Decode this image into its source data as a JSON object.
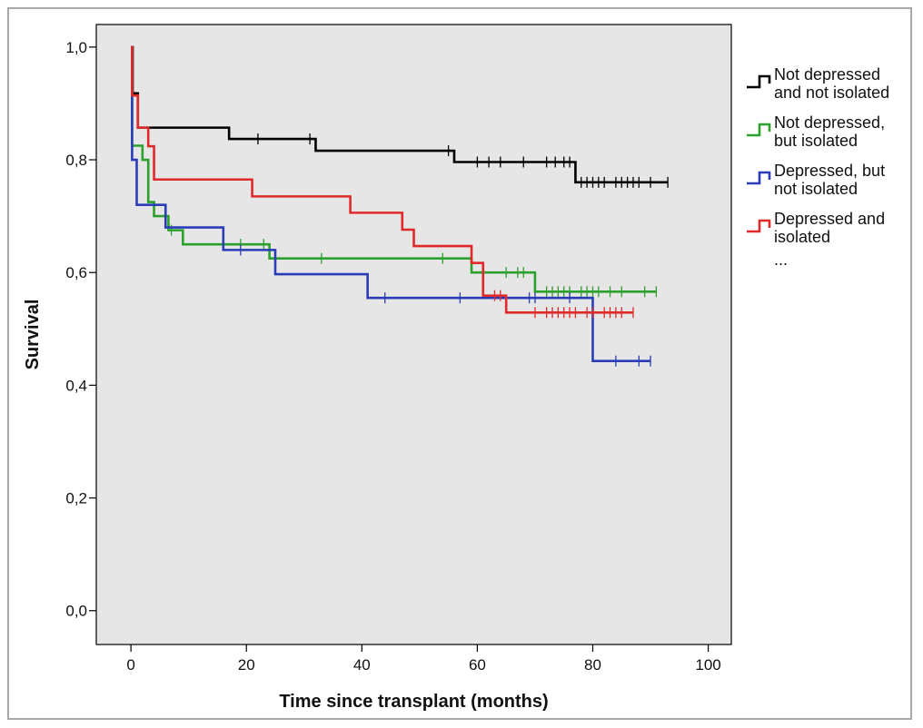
{
  "chart_data": {
    "type": "line",
    "subtype": "kaplan-meier",
    "xlabel": "Time since transplant (months)",
    "ylabel": "Survival",
    "xlim": [
      -6,
      104
    ],
    "ylim": [
      -0.06,
      1.04
    ],
    "xticks": [
      0,
      20,
      40,
      60,
      80,
      100
    ],
    "yticks": [
      0.0,
      0.2,
      0.4,
      0.6,
      0.8,
      1.0
    ],
    "xtick_labels": [
      "0",
      "20",
      "40",
      "60",
      "80",
      "100"
    ],
    "ytick_labels": [
      "0,0",
      "0,2",
      "0,4",
      "0,6",
      "0,8",
      "1,0"
    ],
    "plot_background": "#e6e6e6",
    "grid": false,
    "legend_position": "right",
    "legend_ellipsis": "...",
    "series": [
      {
        "name_lines": [
          "Not depressed",
          "and not isolated"
        ],
        "color": "#000000",
        "steps": [
          [
            0,
            1.0
          ],
          [
            0.3,
            0.918
          ],
          [
            1.2,
            0.857
          ],
          [
            17,
            0.837
          ],
          [
            32,
            0.816
          ],
          [
            56,
            0.796
          ],
          [
            77,
            0.76
          ],
          [
            93,
            0.76
          ]
        ],
        "censored": [
          [
            22,
            0.837
          ],
          [
            31,
            0.837
          ],
          [
            55,
            0.816
          ],
          [
            60,
            0.796
          ],
          [
            62,
            0.796
          ],
          [
            64,
            0.796
          ],
          [
            68,
            0.796
          ],
          [
            72,
            0.796
          ],
          [
            73.5,
            0.796
          ],
          [
            75,
            0.796
          ],
          [
            76,
            0.796
          ],
          [
            78,
            0.76
          ],
          [
            79,
            0.76
          ],
          [
            80,
            0.76
          ],
          [
            81,
            0.76
          ],
          [
            82,
            0.76
          ],
          [
            84,
            0.76
          ],
          [
            85,
            0.76
          ],
          [
            86,
            0.76
          ],
          [
            87,
            0.76
          ],
          [
            88,
            0.76
          ],
          [
            90,
            0.76
          ],
          [
            93,
            0.76
          ]
        ]
      },
      {
        "name_lines": [
          "Not depressed,",
          "but isolated"
        ],
        "color": "#2ca02c",
        "steps": [
          [
            0,
            1.0
          ],
          [
            0.2,
            0.825
          ],
          [
            2,
            0.8
          ],
          [
            3,
            0.725
          ],
          [
            4,
            0.7
          ],
          [
            6.5,
            0.675
          ],
          [
            9,
            0.65
          ],
          [
            24,
            0.625
          ],
          [
            59,
            0.6
          ],
          [
            70,
            0.566
          ],
          [
            91,
            0.566
          ]
        ],
        "censored": [
          [
            7,
            0.675
          ],
          [
            19,
            0.65
          ],
          [
            23,
            0.65
          ],
          [
            33,
            0.625
          ],
          [
            54,
            0.625
          ],
          [
            65,
            0.6
          ],
          [
            67,
            0.6
          ],
          [
            68,
            0.6
          ],
          [
            72,
            0.566
          ],
          [
            73,
            0.566
          ],
          [
            74,
            0.566
          ],
          [
            75,
            0.566
          ],
          [
            76,
            0.566
          ],
          [
            78,
            0.566
          ],
          [
            79,
            0.566
          ],
          [
            80,
            0.566
          ],
          [
            81,
            0.566
          ],
          [
            83,
            0.566
          ],
          [
            85,
            0.566
          ],
          [
            89,
            0.566
          ],
          [
            91,
            0.566
          ]
        ]
      },
      {
        "name_lines": [
          "Depressed, but",
          "not isolated"
        ],
        "color": "#2a3db7",
        "steps": [
          [
            0,
            1.0
          ],
          [
            0.2,
            0.8
          ],
          [
            1,
            0.72
          ],
          [
            6,
            0.68
          ],
          [
            16,
            0.64
          ],
          [
            25,
            0.597
          ],
          [
            41,
            0.555
          ],
          [
            80,
            0.443
          ],
          [
            90,
            0.443
          ]
        ],
        "censored": [
          [
            19,
            0.64
          ],
          [
            44,
            0.555
          ],
          [
            57,
            0.555
          ],
          [
            69,
            0.555
          ],
          [
            70,
            0.555
          ],
          [
            76,
            0.555
          ],
          [
            84,
            0.443
          ],
          [
            88,
            0.443
          ],
          [
            90,
            0.443
          ]
        ]
      },
      {
        "name_lines": [
          "Depressed and",
          "isolated"
        ],
        "color": "#e02a2a",
        "steps": [
          [
            0,
            1.0
          ],
          [
            0.2,
            0.914
          ],
          [
            1.2,
            0.857
          ],
          [
            3,
            0.824
          ],
          [
            4,
            0.765
          ],
          [
            21,
            0.735
          ],
          [
            38,
            0.706
          ],
          [
            47,
            0.676
          ],
          [
            49,
            0.647
          ],
          [
            59,
            0.617
          ],
          [
            61,
            0.559
          ],
          [
            65,
            0.529
          ],
          [
            87,
            0.529
          ]
        ],
        "censored": [
          [
            63,
            0.559
          ],
          [
            64,
            0.559
          ],
          [
            70,
            0.529
          ],
          [
            72,
            0.529
          ],
          [
            73,
            0.529
          ],
          [
            74,
            0.529
          ],
          [
            75,
            0.529
          ],
          [
            76,
            0.529
          ],
          [
            77,
            0.529
          ],
          [
            79,
            0.529
          ],
          [
            80,
            0.529
          ],
          [
            82,
            0.529
          ],
          [
            83,
            0.529
          ],
          [
            84,
            0.529
          ],
          [
            85,
            0.529
          ],
          [
            87,
            0.529
          ]
        ]
      }
    ]
  }
}
